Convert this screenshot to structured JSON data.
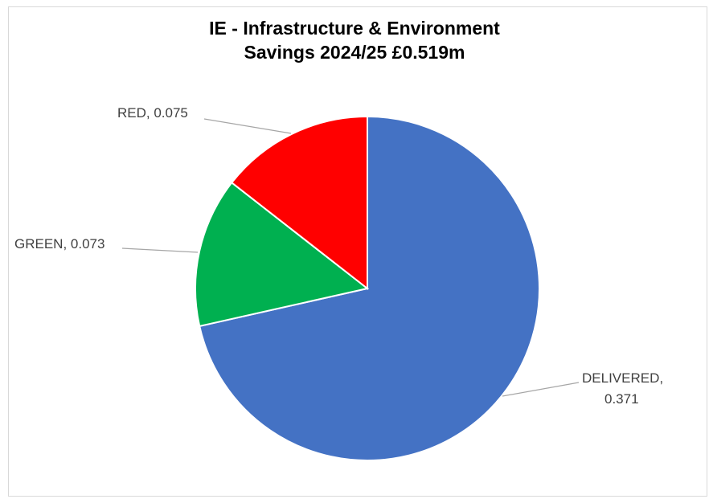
{
  "chart_data": {
    "type": "pie",
    "title_lines": [
      "IE - Infrastructure & Environment",
      "Savings 2024/25 £0.519m"
    ],
    "slices": [
      {
        "name": "DELIVERED",
        "value": 0.371,
        "color": "#4472C4",
        "label_lines": [
          "DELIVERED,",
          "0.371"
        ]
      },
      {
        "name": "GREEN",
        "value": 0.073,
        "color": "#00B050",
        "label_lines": [
          "GREEN, 0.073"
        ]
      },
      {
        "name": "RED",
        "value": 0.075,
        "color": "#FF0000",
        "label_lines": [
          "RED, 0.075"
        ]
      }
    ],
    "start_angle": "12 o'clock",
    "direction": "clockwise",
    "legend": "none"
  }
}
